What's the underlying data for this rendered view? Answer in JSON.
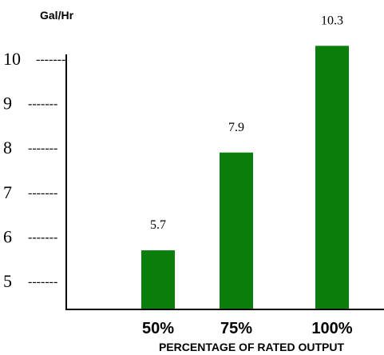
{
  "chart_data": {
    "type": "bar",
    "categories": [
      "50%",
      "75%",
      "100%"
    ],
    "values": [
      5.7,
      7.9,
      10.3
    ],
    "data_labels": [
      "5.7",
      "7.9",
      "10.3"
    ],
    "title": "",
    "xlabel": "PERCENTAGE OF RATED OUTPUT",
    "ylabel": "Gal/Hr",
    "yticks": [
      5,
      6,
      7,
      8,
      9,
      10
    ],
    "ytick_dash": "-------",
    "ylim": [
      4.2,
      10.8
    ],
    "grid": false,
    "bar_color": "#0a7d0a"
  }
}
